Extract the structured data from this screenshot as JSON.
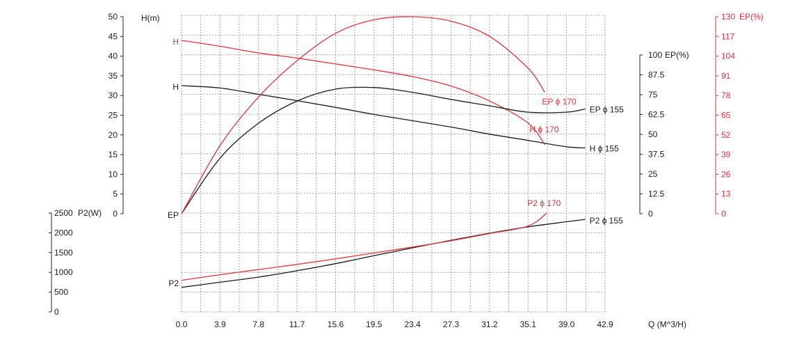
{
  "colors": {
    "black": "#1a1a1a",
    "red": "#e3323c",
    "grid": "#8a8a8a"
  },
  "chart_data": {
    "type": "line",
    "x": [
      0.0,
      3.9,
      7.8,
      11.7,
      15.6,
      19.5,
      23.4,
      27.3,
      31.2,
      35.1,
      39.0
    ],
    "x_tick_labels": [
      "0.0",
      "3.9",
      "7.8",
      "11.7",
      "15.6",
      "19.5",
      "23.4",
      "27.3",
      "31.2",
      "35.1",
      "39.0",
      "42.9"
    ],
    "x_ticks": [
      0.0,
      3.9,
      7.8,
      11.7,
      15.6,
      19.5,
      23.4,
      27.3,
      31.2,
      35.1,
      39.0,
      42.9
    ],
    "xlim": [
      0.0,
      42.9
    ],
    "xlabel": "Q    (M^3/H)",
    "grid": true,
    "axes": {
      "head": {
        "label": "H(m)",
        "ticks": [
          0,
          5,
          10,
          15,
          20,
          25,
          30,
          35,
          40,
          45,
          50
        ],
        "range": [
          0,
          50
        ]
      },
      "power": {
        "label": "P2(W)",
        "ticks": [
          0,
          500,
          1000,
          1500,
          2000,
          2500
        ],
        "range": [
          0,
          2500
        ]
      },
      "eff_black": {
        "label": "EP(%)",
        "ticks": [
          0,
          12.5,
          25,
          37.5,
          50,
          62.5,
          75,
          87.5,
          100
        ],
        "tick_labels": [
          "0",
          "12.5",
          "25",
          "37.5",
          "50",
          "62.5",
          "75",
          "87.5",
          "100"
        ],
        "range": [
          0,
          100
        ]
      },
      "eff_red": {
        "label": "EP(%)",
        "ticks": [
          0,
          13,
          26,
          39,
          52,
          65,
          78,
          91,
          104,
          117,
          130
        ],
        "range": [
          0,
          130
        ]
      }
    },
    "left_labels": {
      "h_red": "H",
      "h_black": "H",
      "ep": "EP",
      "p2": "P2"
    },
    "series": [
      {
        "name": "H ϕ 155",
        "axis": "head",
        "color": "black",
        "x": [
          0,
          3.9,
          7.8,
          11.7,
          15.6,
          19.5,
          23.4,
          27.3,
          31.2,
          35.1,
          39,
          40.9
        ],
        "y": [
          32.5,
          31.9,
          30.3,
          28.7,
          27.0,
          25.2,
          23.6,
          22.0,
          20.2,
          18.6,
          17.0,
          16.7
        ]
      },
      {
        "name": "H ϕ 170",
        "axis": "head",
        "color": "red",
        "x": [
          0,
          3.9,
          7.8,
          11.7,
          15.6,
          19.5,
          23.4,
          27.3,
          31.2,
          35.1,
          36.8
        ],
        "y": [
          44.0,
          42.5,
          40.8,
          39.5,
          38.0,
          36.5,
          34.8,
          32.4,
          28.6,
          23.0,
          17.5
        ]
      },
      {
        "name": "EP ϕ 155",
        "axis": "eff_black",
        "color": "black",
        "x": [
          0,
          3.9,
          7.8,
          11.7,
          15.6,
          19.5,
          23.4,
          27.3,
          31.2,
          35.1,
          39,
          40.9
        ],
        "y": [
          0,
          35,
          57,
          71,
          78.5,
          79.5,
          76.5,
          72,
          68,
          64,
          64,
          66
        ]
      },
      {
        "name": "EP ϕ 170",
        "axis": "eff_red",
        "color": "red",
        "x": [
          0,
          3.9,
          7.8,
          11.7,
          15.6,
          19.5,
          23.4,
          27.3,
          31.2,
          35.1,
          36.8
        ],
        "y": [
          0,
          45,
          77,
          101,
          119,
          128,
          130,
          127,
          117,
          96,
          80
        ]
      },
      {
        "name": "P2 ϕ 155",
        "axis": "power",
        "color": "black",
        "x": [
          0,
          3.9,
          7.8,
          11.7,
          15.6,
          19.5,
          23.4,
          27.3,
          31.2,
          35.1,
          39,
          40.9
        ],
        "y": [
          620,
          750,
          880,
          1040,
          1220,
          1420,
          1620,
          1810,
          1990,
          2150,
          2280,
          2340
        ]
      },
      {
        "name": "P2 ϕ 170",
        "axis": "power",
        "color": "red",
        "x": [
          0,
          3.9,
          7.8,
          11.7,
          15.6,
          19.5,
          23.4,
          27.3,
          31.2,
          35.1,
          37.0
        ],
        "y": [
          800,
          940,
          1070,
          1200,
          1340,
          1490,
          1640,
          1800,
          1980,
          2170,
          2500
        ]
      }
    ]
  }
}
